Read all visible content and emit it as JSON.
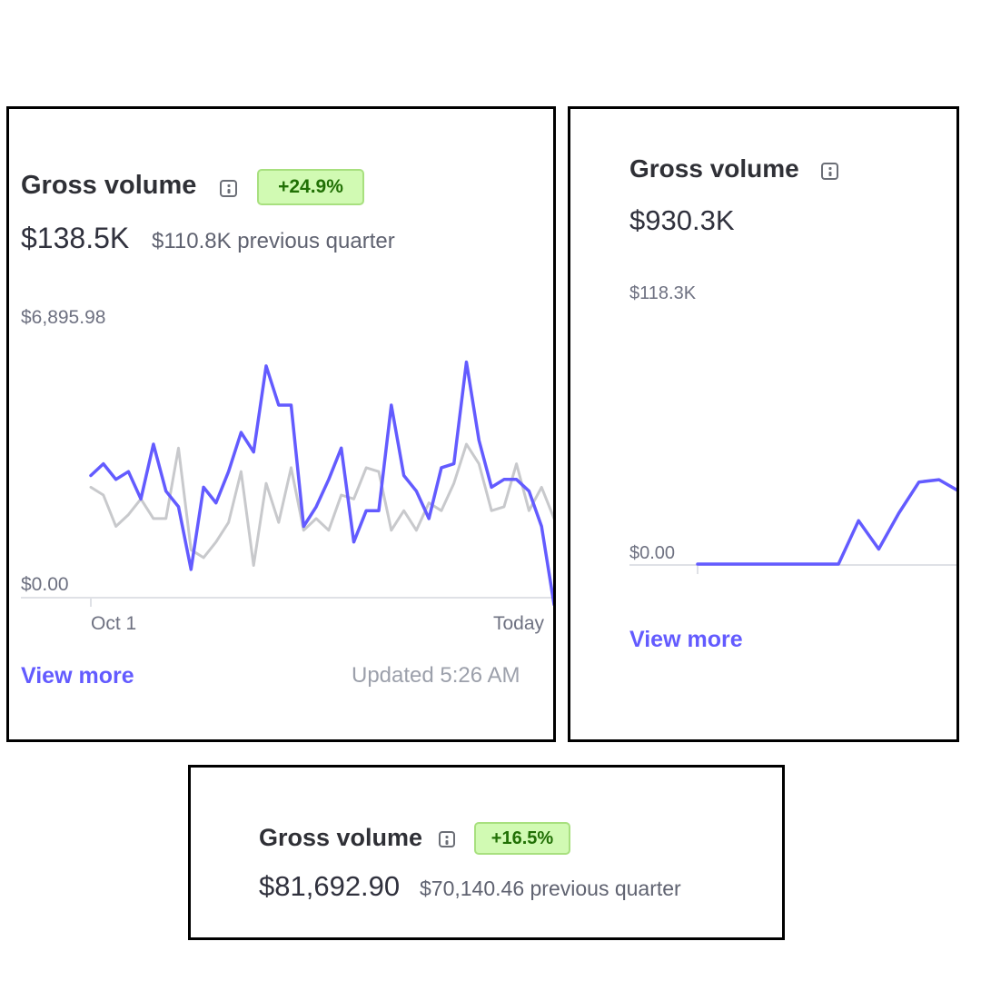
{
  "colors": {
    "accent": "#635bff",
    "previous_line": "#c8c9cc",
    "badge_bg": "#d1fab3",
    "badge_text": "#217005",
    "axis_line": "#dfe1e6"
  },
  "cards": [
    {
      "title": "Gross volume",
      "info_icon": "info-icon",
      "badge": "+24.9%",
      "value": "$138.5K",
      "comparison": "$110.8K previous quarter",
      "y_max_label": "$6,895.98",
      "y_min_label": "$0.00",
      "x_start_label": "Oct 1",
      "x_end_label": "Today",
      "view_more": "View more",
      "updated": "Updated 5:26 AM"
    },
    {
      "title": "Gross volume",
      "info_icon": "info-icon",
      "value": "$930.3K",
      "y_max_label": "$118.3K",
      "y_min_label": "$0.00",
      "view_more": "View more"
    },
    {
      "title": "Gross volume",
      "info_icon": "info-icon",
      "badge": "+16.5%",
      "value": "$81,692.90",
      "comparison": "$70,140.46 previous quarter"
    }
  ],
  "chart_data": [
    {
      "type": "line",
      "ylim": [
        0,
        6895.98
      ],
      "x_labels": [
        "Oct 1",
        "Today"
      ],
      "series": [
        {
          "color": "#635bff",
          "values": [
            3100,
            3400,
            3000,
            3200,
            2500,
            3900,
            2700,
            2300,
            700,
            2800,
            2400,
            3200,
            4200,
            3700,
            5900,
            4900,
            4900,
            1800,
            2300,
            3000,
            3800,
            1400,
            2200,
            2200,
            4900,
            3100,
            2700,
            2000,
            3300,
            3400,
            6000,
            4000,
            2800,
            3000,
            3000,
            2700,
            1800,
            -200
          ]
        },
        {
          "color": "#c8c9cc",
          "values": [
            2800,
            2600,
            1800,
            2100,
            2500,
            2000,
            2000,
            3800,
            1200,
            1000,
            1400,
            1900,
            3200,
            800,
            2900,
            1900,
            3300,
            1700,
            2000,
            1700,
            2600,
            2500,
            3300,
            3200,
            1700,
            2200,
            1700,
            2400,
            2200,
            2900,
            3900,
            3400,
            2200,
            2300,
            3400,
            2200,
            2800,
            2000
          ]
        }
      ]
    },
    {
      "type": "line",
      "ylim": [
        0,
        118300
      ],
      "series": [
        {
          "color": "#635bff",
          "values": [
            0,
            0,
            0,
            0,
            0,
            0,
            0,
            0,
            18800,
            6500,
            22000,
            35500,
            36500,
            31500
          ]
        }
      ]
    }
  ]
}
